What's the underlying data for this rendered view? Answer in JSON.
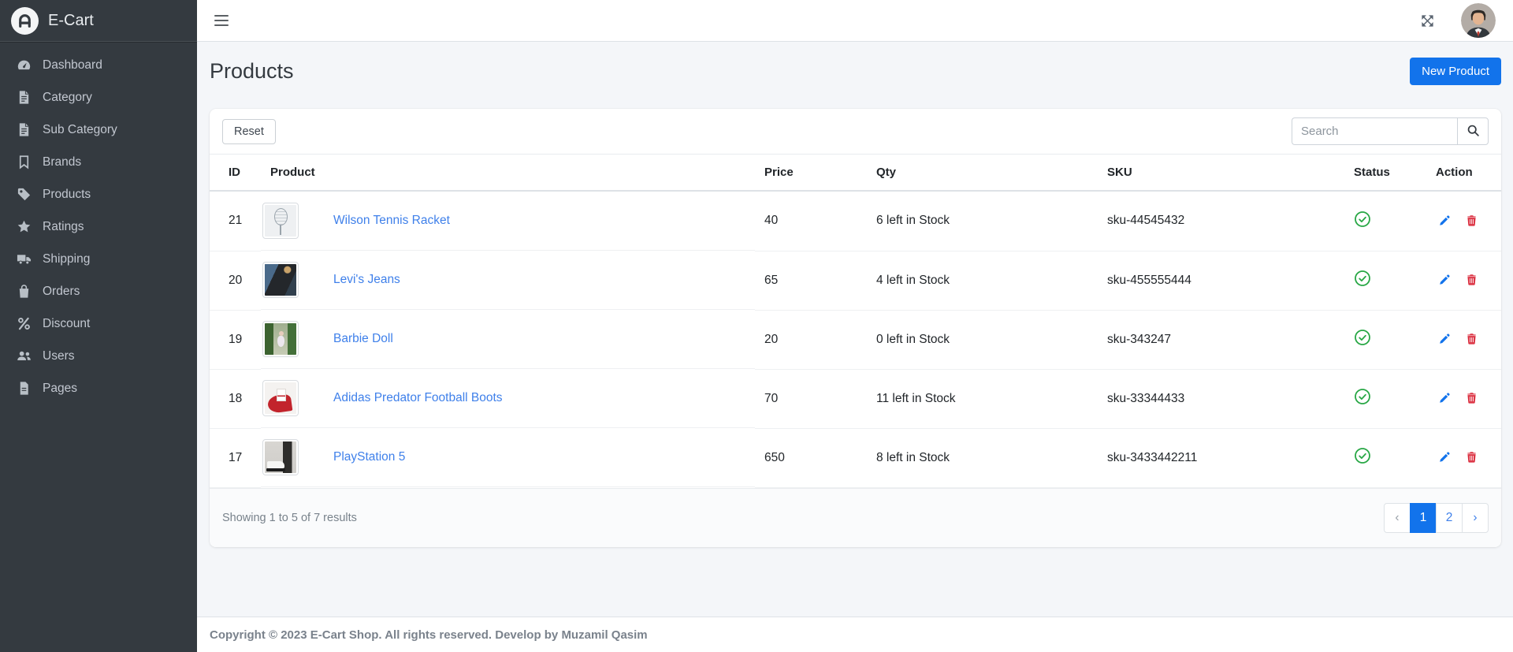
{
  "colors": {
    "accent": "#1273eb",
    "link": "#3f80ea",
    "success": "#28a745",
    "danger": "#dc3545",
    "sidebar_bg": "#343a40",
    "sidebar_text": "#c2c7d0",
    "body_bg": "#f4f6f9"
  },
  "sidebar": {
    "brand": "E-Cart",
    "items": [
      {
        "label": "Dashboard",
        "icon": "gauge-icon"
      },
      {
        "label": "Category",
        "icon": "file-lines-icon"
      },
      {
        "label": "Sub Category",
        "icon": "file-lines-icon"
      },
      {
        "label": "Brands",
        "icon": "bookmark-icon"
      },
      {
        "label": "Products",
        "icon": "tag-icon"
      },
      {
        "label": "Ratings",
        "icon": "star-icon"
      },
      {
        "label": "Shipping",
        "icon": "truck-icon"
      },
      {
        "label": "Orders",
        "icon": "shopping-bag-icon"
      },
      {
        "label": "Discount",
        "icon": "percent-icon"
      },
      {
        "label": "Users",
        "icon": "users-icon"
      },
      {
        "label": "Pages",
        "icon": "file-icon"
      }
    ]
  },
  "navbar": {
    "icons": {
      "menu": "hamburger-icon",
      "fullscreen": "expand-arrows-icon",
      "profile": "user-avatar"
    }
  },
  "page": {
    "title": "Products",
    "new_product_label": "New Product"
  },
  "toolbar": {
    "reset_label": "Reset",
    "search_placeholder": "Search",
    "search_value": ""
  },
  "table": {
    "columns": [
      "ID",
      "Product",
      "Price",
      "Qty",
      "SKU",
      "Status",
      "Action"
    ],
    "rows": [
      {
        "id": "21",
        "product": "Wilson Tennis Racket",
        "price": "40",
        "qty": "6 left in Stock",
        "sku": "sku-44545432",
        "status": "active",
        "thumbnail": "tennis-racket"
      },
      {
        "id": "20",
        "product": "Levi's Jeans",
        "price": "65",
        "qty": "4 left in Stock",
        "sku": "sku-455555444",
        "status": "active",
        "thumbnail": "jeans"
      },
      {
        "id": "19",
        "product": "Barbie Doll",
        "price": "20",
        "qty": "0 left in Stock",
        "sku": "sku-343247",
        "status": "active",
        "thumbnail": "barbie-doll"
      },
      {
        "id": "18",
        "product": "Adidas Predator Football Boots",
        "price": "70",
        "qty": "11 left in Stock",
        "sku": "sku-33344433",
        "status": "active",
        "thumbnail": "football-boot"
      },
      {
        "id": "17",
        "product": "PlayStation 5",
        "price": "650",
        "qty": "8 left in Stock",
        "sku": "sku-3433442211",
        "status": "active",
        "thumbnail": "ps5"
      }
    ],
    "status_icon": "circle-check-icon",
    "action_icons": {
      "edit": "pencil-icon",
      "delete": "trash-icon"
    }
  },
  "pagination": {
    "summary": "Showing 1 to 5 of 7 results",
    "prev": "‹",
    "pages": [
      "1",
      "2"
    ],
    "active_page": "1",
    "next": "›"
  },
  "footer": {
    "copyright": "Copyright © 2023 E-Cart Shop. All rights reserved. Develop by Muzamil Qasim"
  }
}
